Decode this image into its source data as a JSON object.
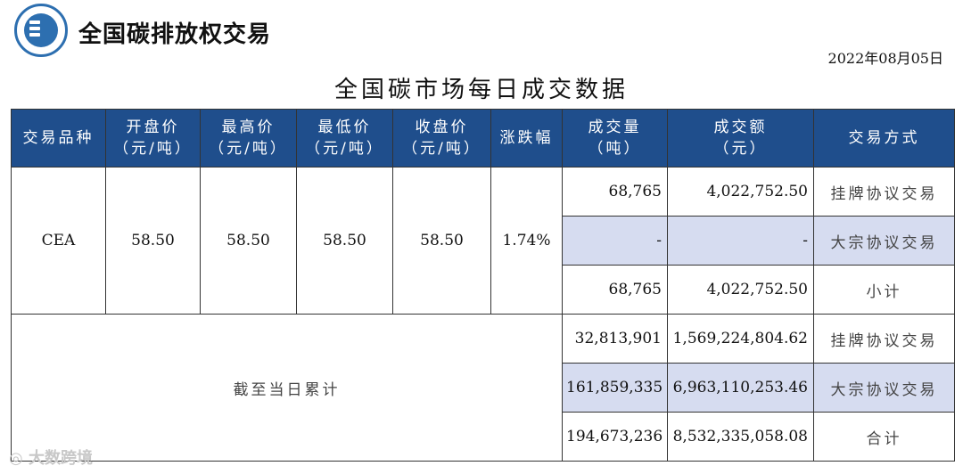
{
  "brand": {
    "name": "全国碳排放权交易",
    "logo_icon": "exchange-logo-icon"
  },
  "date": "2022年08月05日",
  "title": "全国碳市场每日成交数据",
  "headers": [
    {
      "line1": "交易品种",
      "line2": ""
    },
    {
      "line1": "开盘价",
      "line2": "（元/吨）"
    },
    {
      "line1": "最高价",
      "line2": "（元/吨）"
    },
    {
      "line1": "最低价",
      "line2": "（元/吨）"
    },
    {
      "line1": "收盘价",
      "line2": "（元/吨）"
    },
    {
      "line1": "涨跌幅",
      "line2": ""
    },
    {
      "line1": "成交量",
      "line2": "（吨）"
    },
    {
      "line1": "成交额",
      "line2": "（元）"
    },
    {
      "line1": "交易方式",
      "line2": ""
    }
  ],
  "daily": {
    "product": "CEA",
    "open": "58.50",
    "high": "58.50",
    "low": "58.50",
    "close": "58.50",
    "change": "1.74%",
    "rows": [
      {
        "volume": "68,765",
        "amount": "4,022,752.50",
        "method": "挂牌协议交易"
      },
      {
        "volume": "-",
        "amount": "-",
        "method": "大宗协议交易"
      },
      {
        "volume": "68,765",
        "amount": "4,022,752.50",
        "method": "小计"
      }
    ]
  },
  "cumulative": {
    "label": "截至当日累计",
    "rows": [
      {
        "volume": "32,813,901",
        "amount": "1,569,224,804.62",
        "method": "挂牌协议交易"
      },
      {
        "volume": "161,859,335",
        "amount": "6,963,110,253.46",
        "method": "大宗协议交易"
      },
      {
        "volume": "194,673,236",
        "amount": "8,532,335,058.08",
        "method": "合计"
      }
    ]
  },
  "watermark": "大数跨境",
  "colors": {
    "header_bg": "#1f4e8c",
    "shade": "#d6dcf0",
    "logo": "#2d6fb0"
  }
}
